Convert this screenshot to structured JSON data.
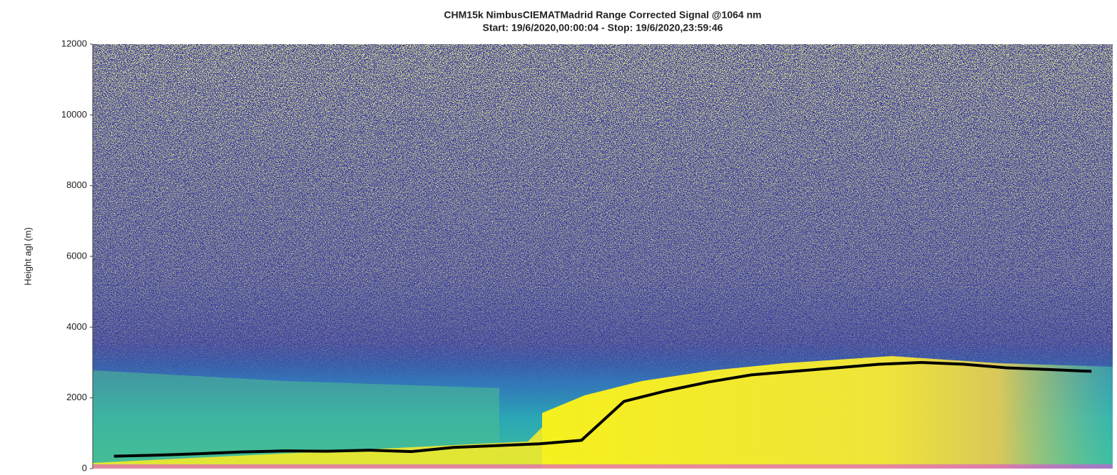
{
  "chart_data": {
    "type": "heatmap",
    "title": "CHM15k NimbusCIEMATMadrid Range Corrected Signal @1064 nm",
    "subtitle": "Start: 19/6/2020,00:00:04 - Stop: 19/6/2020,23:59:46",
    "y_label": "Height agl (m)",
    "ylim": [
      0,
      12000
    ],
    "yticks": [
      0,
      2000,
      4000,
      6000,
      8000,
      10000,
      12000
    ],
    "categories": [
      null,
      null,
      null,
      null,
      null,
      null,
      null,
      null,
      null,
      null,
      null,
      null,
      null,
      null,
      null,
      null,
      null,
      null,
      null,
      null,
      null,
      null,
      null,
      null
    ],
    "series": [
      {
        "color": "#000000",
        "values": [
          350,
          380,
          420,
          470,
          500,
          490,
          520,
          480,
          600,
          650,
          700,
          800,
          1900,
          2200,
          2450,
          2650,
          2750,
          2850,
          2950,
          3000,
          2950,
          2850,
          2800,
          2750
        ]
      }
    ]
  }
}
